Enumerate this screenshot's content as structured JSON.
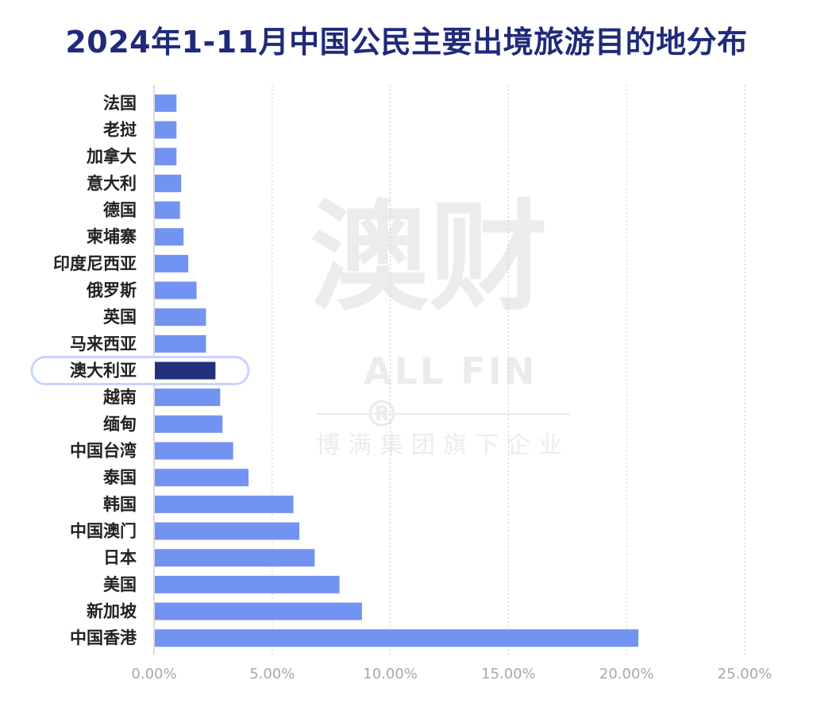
{
  "page": {
    "title": "2024年1-11月中国公民主要出境旅游目的地分布"
  },
  "watermark": {
    "main": "澳财",
    "en": "ALL FIN ®",
    "sub": "博满集团旗下企业"
  },
  "colors": {
    "bar": "#7393f2",
    "highlight": "#24307e",
    "title": "#1f2a7a",
    "grid": "#c8c8c8",
    "tick": "#a8a8a8"
  },
  "chart_data": {
    "type": "bar",
    "orientation": "horizontal",
    "title": "2024年1-11月中国公民主要出境旅游目的地分布",
    "xlabel": "",
    "ylabel": "",
    "xlim": [
      0,
      25
    ],
    "x_ticks": [
      "0.00%",
      "5.00%",
      "10.00%",
      "15.00%",
      "20.00%",
      "25.00%"
    ],
    "grid": "vertical-dotted",
    "highlight": "澳大利亚",
    "categories": [
      "法国",
      "老挝",
      "加拿大",
      "意大利",
      "德国",
      "柬埔寨",
      "印度尼西亚",
      "俄罗斯",
      "英国",
      "马来西亚",
      "澳大利亚",
      "越南",
      "缅甸",
      "中国台湾",
      "泰国",
      "韩国",
      "中国澳门",
      "日本",
      "美国",
      "新加坡",
      "中国香港"
    ],
    "values": [
      0.95,
      0.95,
      0.95,
      1.15,
      1.1,
      1.25,
      1.45,
      1.8,
      2.2,
      2.2,
      2.6,
      2.8,
      2.9,
      3.35,
      4.0,
      5.9,
      6.15,
      6.8,
      7.85,
      8.8,
      20.5
    ]
  }
}
